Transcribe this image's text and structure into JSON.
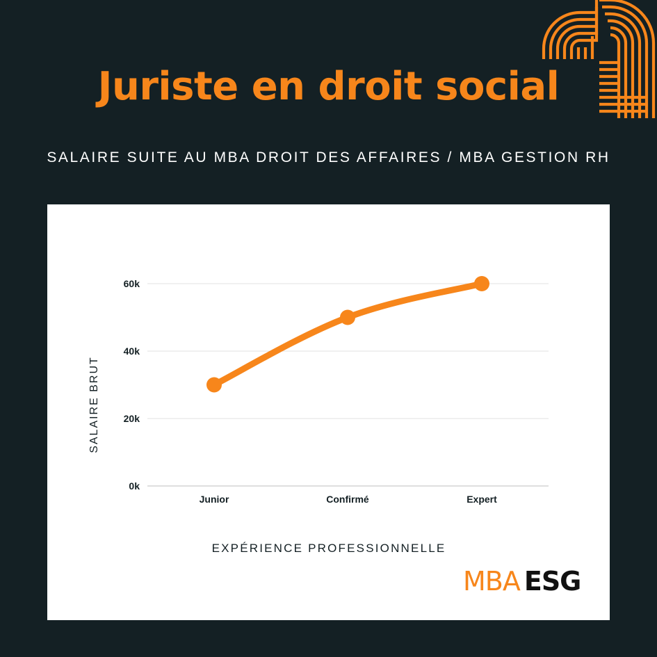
{
  "title": "Juriste en droit social",
  "subtitle": "SALAIRE SUITE AU MBA DROIT DES AFFAIRES / MBA GESTION RH",
  "logo": {
    "mba": "MBA",
    "esg": "ESG"
  },
  "colors": {
    "background": "#142024",
    "accent": "#f7861b",
    "panel": "#ffffff",
    "text": "#142024",
    "grid": "#e2e2e2"
  },
  "chart_data": {
    "type": "line",
    "categories": [
      "Junior",
      "Confirmé",
      "Expert"
    ],
    "values": [
      30000,
      50000,
      60000
    ],
    "xlabel": "EXPÉRIENCE PROFESSIONNELLE",
    "ylabel": "SALAIRE BRUT",
    "ylim": [
      0,
      60000
    ],
    "y_ticks": [
      {
        "value": 0,
        "label": "0k"
      },
      {
        "value": 20000,
        "label": "20k"
      },
      {
        "value": 40000,
        "label": "40k"
      },
      {
        "value": 60000,
        "label": "60k"
      }
    ],
    "grid": true,
    "legend": "none"
  }
}
